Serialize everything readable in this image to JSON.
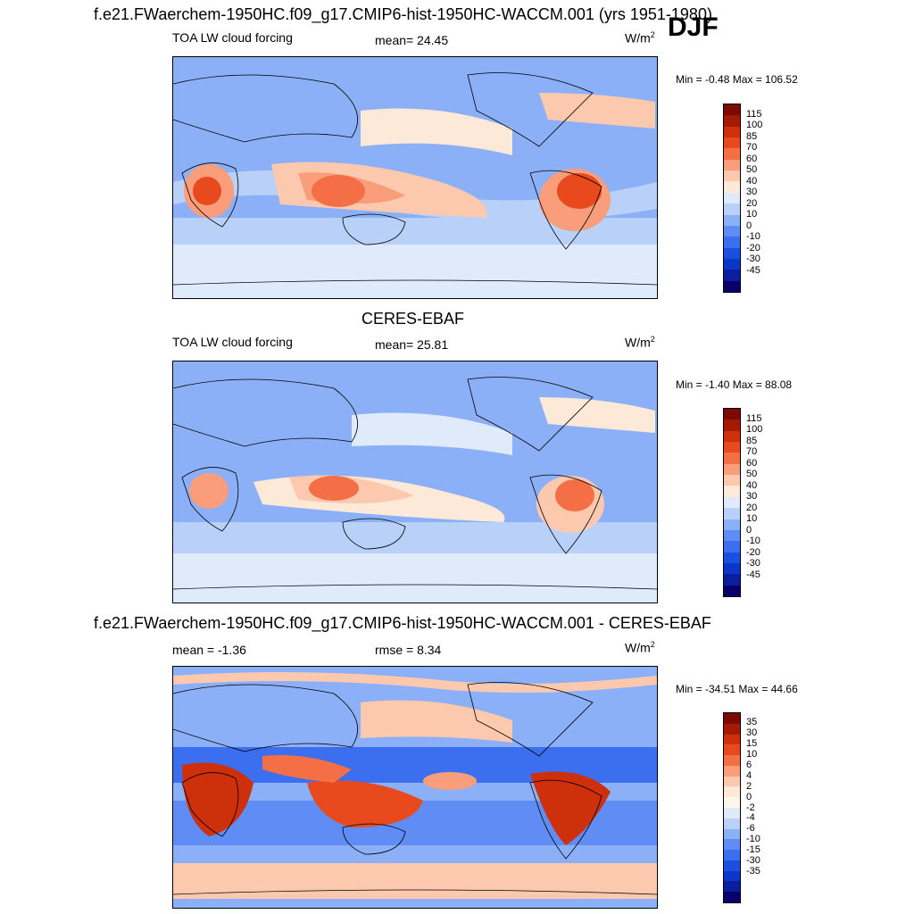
{
  "header": {
    "title": "f.e21.FWaerchem-1950HC.f09_g17.CMIP6-hist-1950HC-WACCM.001 (yrs 1951-1980)",
    "season": "DJF"
  },
  "panels": [
    {
      "id": "model",
      "title": "",
      "left_label": "TOA LW cloud forcing",
      "center_label": "mean=  24.45",
      "units": "W/m",
      "units_sup": "2",
      "minmax": "Min =  -0.48 Max = 106.52",
      "colorbar": {
        "colors": [
          "#08006b",
          "#0a1e9e",
          "#0c36c8",
          "#1a4fe0",
          "#3c6ef0",
          "#5f8df5",
          "#8cb0f7",
          "#b9d1f9",
          "#dfeafb",
          "#fde9d8",
          "#fcc9ae",
          "#f99d7b",
          "#f46f45",
          "#e84a1e",
          "#cd300a",
          "#a51a05",
          "#7d0a02"
        ],
        "labels": [
          "115",
          "100",
          "85",
          "70",
          "60",
          "50",
          "40",
          "30",
          "20",
          "10",
          "0",
          "-10",
          "-20",
          "-30",
          "-45"
        ]
      }
    },
    {
      "id": "obs",
      "title": "CERES-EBAF",
      "left_label": "TOA LW cloud forcing",
      "center_label": "mean=  25.81",
      "units": "W/m",
      "units_sup": "2",
      "minmax": "Min =  -1.40 Max =  88.08",
      "colorbar": {
        "colors": [
          "#08006b",
          "#0a1e9e",
          "#0c36c8",
          "#1a4fe0",
          "#3c6ef0",
          "#5f8df5",
          "#8cb0f7",
          "#b9d1f9",
          "#dfeafb",
          "#fde9d8",
          "#fcc9ae",
          "#f99d7b",
          "#f46f45",
          "#e84a1e",
          "#cd300a",
          "#a51a05",
          "#7d0a02"
        ],
        "labels": [
          "115",
          "100",
          "85",
          "70",
          "60",
          "50",
          "40",
          "30",
          "20",
          "10",
          "0",
          "-10",
          "-20",
          "-30",
          "-45"
        ]
      }
    },
    {
      "id": "diff",
      "title": "f.e21.FWaerchem-1950HC.f09_g17.CMIP6-hist-1950HC-WACCM.001 - CERES-EBAF",
      "left_label": "mean =  -1.36",
      "center_label": "rmse =   8.34",
      "units": "W/m",
      "units_sup": "2",
      "minmax": "Min = -34.51 Max =  44.66",
      "colorbar": {
        "colors": [
          "#08006b",
          "#0a1e9e",
          "#0c36c8",
          "#1a4fe0",
          "#3c6ef0",
          "#5f8df5",
          "#8cb0f7",
          "#b9d1f9",
          "#dfeafb",
          "#fdf6ee",
          "#fde9d8",
          "#fcc9ae",
          "#f99d7b",
          "#f46f45",
          "#e84a1e",
          "#cd300a",
          "#a51a05",
          "#7d0a02"
        ],
        "labels": [
          "35",
          "30",
          "15",
          "10",
          "6",
          "4",
          "2",
          "0",
          "-2",
          "-4",
          "-6",
          "-10",
          "-15",
          "-30",
          "-35"
        ]
      }
    }
  ],
  "chart_data": [
    {
      "type": "heatmap",
      "title": "TOA LW cloud forcing",
      "units": "W/m2",
      "mean": 24.45,
      "min": -0.48,
      "max": 106.52,
      "levels": [
        -45,
        -30,
        -20,
        -10,
        0,
        10,
        20,
        30,
        40,
        50,
        60,
        70,
        85,
        100,
        115
      ]
    },
    {
      "type": "heatmap",
      "title": "CERES-EBAF",
      "units": "W/m2",
      "mean": 25.81,
      "min": -1.4,
      "max": 88.08,
      "levels": [
        -45,
        -30,
        -20,
        -10,
        0,
        10,
        20,
        30,
        40,
        50,
        60,
        70,
        85,
        100,
        115
      ]
    },
    {
      "type": "heatmap",
      "title": "f.e21.FWaerchem-1950HC.f09_g17.CMIP6-hist-1950HC-WACCM.001 - CERES-EBAF",
      "units": "W/m2",
      "mean": -1.36,
      "rmse": 8.34,
      "min": -34.51,
      "max": 44.66,
      "levels": [
        -35,
        -30,
        -15,
        -10,
        -6,
        -4,
        -2,
        0,
        2,
        4,
        6,
        10,
        15,
        30,
        35
      ]
    }
  ]
}
